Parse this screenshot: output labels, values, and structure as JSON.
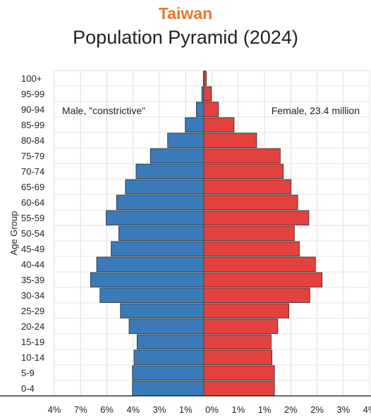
{
  "chart_data": {
    "type": "bar",
    "subtitle": "Taiwan",
    "title": "Population Pyramid (2024)",
    "ylabel": "Age Group",
    "xlabel": "",
    "categories": [
      "100+",
      "95-99",
      "90-94",
      "85-99",
      "80-84",
      "75-79",
      "70-74",
      "65-69",
      "60-64",
      "55-59",
      "50-54",
      "45-49",
      "40-44",
      "35-39",
      "30-34",
      "25-29",
      "20-24",
      "15-19",
      "10-14",
      "5-9",
      "0-4"
    ],
    "series": [
      {
        "name": "Male, \"constrictive\"",
        "color": "#3a7ab8",
        "values": [
          0.03,
          0.12,
          0.45,
          1.12,
          2.18,
          3.22,
          4.08,
          4.72,
          5.25,
          5.88,
          5.12,
          5.58,
          6.45,
          6.82,
          6.25,
          5.02,
          4.5,
          4.02,
          4.2,
          4.3,
          4.3
        ]
      },
      {
        "name": "Female, 23.4 million",
        "color": "#e4423e",
        "values": [
          0.15,
          0.45,
          0.88,
          1.82,
          3.18,
          4.6,
          4.78,
          5.25,
          5.65,
          6.32,
          5.45,
          5.75,
          6.72,
          7.12,
          6.38,
          5.12,
          4.45,
          4.05,
          4.1,
          4.25,
          4.25
        ]
      }
    ],
    "x_tick_labels": [
      "4%",
      "7%",
      "6%",
      "4%",
      "3%",
      "1%",
      "0%",
      "1%",
      "1%",
      "2%",
      "2%",
      "3%",
      "4%"
    ],
    "xlim": [
      -9,
      9
    ],
    "grid": true,
    "legend": "top, inside each half"
  }
}
